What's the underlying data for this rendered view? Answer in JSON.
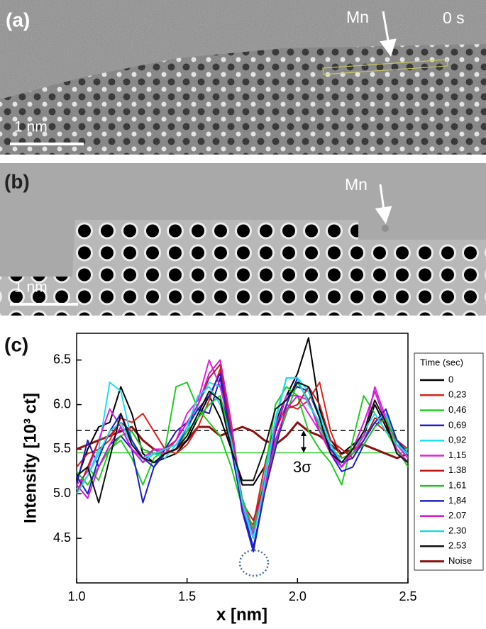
{
  "panels": {
    "a": {
      "label": "(a)",
      "marker": "Mn",
      "time": "0 s",
      "scale": "1 nm"
    },
    "b": {
      "label": "(b)",
      "marker": "Mn",
      "scale": "1 nm"
    }
  },
  "chart_data": {
    "type": "line",
    "label": "(c)",
    "x_label": "x [nm]",
    "y_label": "Intensity [10³ ct]",
    "x": [
      1.0,
      1.05,
      1.1,
      1.15,
      1.2,
      1.25,
      1.3,
      1.35,
      1.4,
      1.45,
      1.5,
      1.55,
      1.6,
      1.65,
      1.7,
      1.75,
      1.8,
      1.85,
      1.9,
      1.95,
      2.0,
      2.05,
      2.1,
      2.15,
      2.2,
      2.25,
      2.3,
      2.35,
      2.4,
      2.45,
      2.5
    ],
    "xlim": [
      1.0,
      2.5
    ],
    "xticks": [
      {
        "value": 1,
        "label": "1.0"
      },
      1.5,
      {
        "value": 2,
        "label": "2.0"
      },
      2.5
    ],
    "ylim": [
      4.0,
      6.8
    ],
    "yticks": [
      4.5,
      {
        "value": 5,
        "label": "5.0"
      },
      5.5,
      {
        "value": 6,
        "label": "6.0"
      },
      6.5
    ],
    "legend_title": "Time (sec)",
    "legend": "right",
    "series": [
      {
        "name": "0",
        "color": "#000000",
        "values": [
          5.15,
          5.5,
          5.75,
          5.8,
          6.2,
          5.9,
          5.45,
          5.35,
          5.4,
          5.45,
          5.6,
          5.85,
          6.1,
          5.85,
          5.5,
          5.1,
          5.1,
          5.3,
          5.8,
          6.1,
          6.35,
          6.75,
          5.95,
          5.6,
          5.45,
          5.55,
          5.65,
          6.0,
          5.75,
          5.5,
          5.35
        ]
      },
      {
        "name": "0,23",
        "color": "#e0201b",
        "values": [
          5.3,
          5.45,
          5.5,
          5.6,
          5.85,
          5.8,
          5.9,
          5.7,
          5.5,
          5.45,
          5.55,
          5.75,
          6.05,
          6.4,
          5.6,
          4.8,
          4.65,
          5.3,
          5.7,
          6.0,
          5.95,
          6.05,
          6.25,
          5.7,
          5.4,
          5.45,
          5.6,
          5.8,
          5.7,
          5.55,
          5.4
        ]
      },
      {
        "name": "0,46",
        "color": "#22cc22",
        "values": [
          5.2,
          5.3,
          5.15,
          5.5,
          5.6,
          5.4,
          5.1,
          5.4,
          5.5,
          6.2,
          6.25,
          5.95,
          5.8,
          5.65,
          5.3,
          4.85,
          4.6,
          5.2,
          6.0,
          6.2,
          6.1,
          5.7,
          5.5,
          5.35,
          5.1,
          5.6,
          6.1,
          5.9,
          5.7,
          5.5,
          5.3
        ]
      },
      {
        "name": "0,69",
        "color": "#1a1ad0",
        "values": [
          5.1,
          5.6,
          5.3,
          5.55,
          5.65,
          5.5,
          4.9,
          5.3,
          5.5,
          5.7,
          5.8,
          5.95,
          5.9,
          6.3,
          5.5,
          4.85,
          4.4,
          5.0,
          5.7,
          6.1,
          6.2,
          6.15,
          5.85,
          5.45,
          5.25,
          5.3,
          5.55,
          5.75,
          5.9,
          5.6,
          5.45
        ]
      },
      {
        "name": "0,92",
        "color": "#18e0f0",
        "values": [
          5.05,
          5.2,
          5.5,
          6.25,
          6.15,
          5.6,
          5.35,
          5.45,
          5.4,
          5.55,
          5.7,
          6.0,
          6.25,
          6.2,
          5.7,
          4.85,
          4.5,
          5.2,
          5.8,
          6.3,
          6.3,
          6.15,
          5.9,
          5.55,
          5.3,
          5.5,
          5.65,
          5.8,
          5.9,
          5.6,
          5.4
        ]
      },
      {
        "name": "1,15",
        "color": "#e020e0",
        "values": [
          5.1,
          5.25,
          5.6,
          5.95,
          5.75,
          5.5,
          5.4,
          5.5,
          5.5,
          5.6,
          5.9,
          6.05,
          6.5,
          6.2,
          5.7,
          4.85,
          4.55,
          5.15,
          5.75,
          6.1,
          6.1,
          5.9,
          5.7,
          5.5,
          5.3,
          5.45,
          5.65,
          6.2,
          5.85,
          5.55,
          5.4
        ]
      },
      {
        "name": "1.38",
        "color": "#c01818",
        "values": [
          5.0,
          5.3,
          5.6,
          5.65,
          5.8,
          5.7,
          5.5,
          5.45,
          5.5,
          5.6,
          5.8,
          6.0,
          6.3,
          6.45,
          5.7,
          4.9,
          4.7,
          5.1,
          5.6,
          5.95,
          6.0,
          6.2,
          6.0,
          5.6,
          5.5,
          5.4,
          5.6,
          5.85,
          5.8,
          5.6,
          5.5
        ]
      },
      {
        "name": "1,61",
        "color": "#20c020",
        "values": [
          5.25,
          5.1,
          5.3,
          5.5,
          5.65,
          5.7,
          5.5,
          5.45,
          5.45,
          5.5,
          5.7,
          5.85,
          6.0,
          6.1,
          5.6,
          4.95,
          4.6,
          5.0,
          5.55,
          5.9,
          6.25,
          6.05,
          5.75,
          5.5,
          5.4,
          5.45,
          5.55,
          5.75,
          5.85,
          5.55,
          5.5
        ]
      },
      {
        "name": "1,84",
        "color": "#2020c8",
        "values": [
          5.2,
          5.0,
          5.4,
          5.7,
          5.9,
          5.6,
          5.4,
          5.3,
          5.45,
          5.5,
          5.75,
          5.95,
          6.1,
          6.35,
          5.6,
          4.8,
          4.35,
          5.0,
          5.5,
          6.0,
          6.3,
          6.0,
          5.8,
          5.5,
          5.35,
          5.4,
          5.6,
          5.8,
          5.95,
          5.6,
          5.45
        ]
      },
      {
        "name": "2.07",
        "color": "#d418d4",
        "values": [
          5.1,
          4.95,
          5.3,
          5.55,
          5.75,
          5.5,
          5.35,
          5.5,
          5.45,
          5.6,
          5.8,
          6.0,
          6.35,
          6.5,
          5.8,
          4.9,
          4.55,
          5.05,
          5.6,
          5.95,
          6.1,
          6.05,
          5.7,
          5.45,
          5.3,
          5.5,
          5.8,
          6.15,
          5.8,
          5.5,
          5.35
        ]
      },
      {
        "name": "2.30",
        "color": "#20d8e8",
        "values": [
          5.0,
          5.2,
          5.45,
          5.7,
          5.8,
          5.55,
          5.4,
          5.45,
          5.5,
          5.55,
          5.75,
          6.1,
          6.2,
          6.0,
          5.6,
          4.9,
          4.5,
          5.1,
          5.85,
          6.3,
          6.3,
          6.0,
          5.8,
          5.55,
          5.35,
          5.5,
          5.7,
          5.9,
          5.7,
          5.55,
          5.45
        ]
      },
      {
        "name": "2.53",
        "color": "#111111",
        "values": [
          5.2,
          5.3,
          4.9,
          5.4,
          5.9,
          5.55,
          5.4,
          5.35,
          5.45,
          5.5,
          5.65,
          5.9,
          6.15,
          6.05,
          5.5,
          5.15,
          5.15,
          5.5,
          5.95,
          6.05,
          6.25,
          6.2,
          5.85,
          5.45,
          5.35,
          5.5,
          5.7,
          6.05,
          5.8,
          5.45,
          5.35
        ]
      },
      {
        "name": "Noise",
        "color": "#8b1010",
        "width": 3,
        "values": [
          5.5,
          5.55,
          5.6,
          5.65,
          5.7,
          5.75,
          5.6,
          5.5,
          5.45,
          5.5,
          5.6,
          5.75,
          5.75,
          5.65,
          5.7,
          5.75,
          5.7,
          5.6,
          5.55,
          5.65,
          5.8,
          5.7,
          5.65,
          5.55,
          5.45,
          5.5,
          5.55,
          5.5,
          5.45,
          5.4,
          5.45
        ]
      }
    ],
    "reference_lines": [
      {
        "value": 5.71,
        "color": "#000000",
        "dashed": true
      },
      {
        "value": 5.46,
        "color": "#33cc33",
        "dashed": false
      }
    ],
    "annotation": "3σ"
  }
}
